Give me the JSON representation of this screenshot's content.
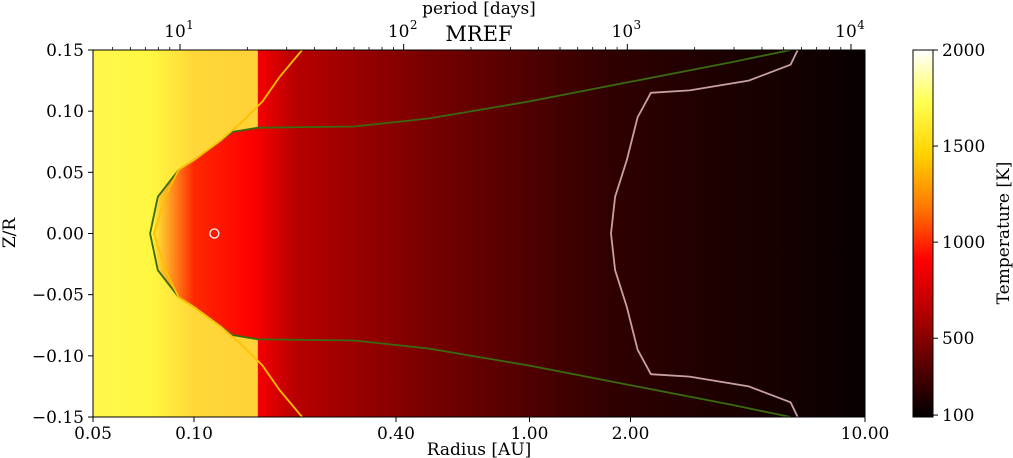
{
  "chart_data": {
    "type": "heatmap",
    "title": "MREF",
    "xlabel": "Radius [AU]",
    "ylabel": "Z/R",
    "top_xlabel": "period [days]",
    "colorbar_label": "Temperature [K]",
    "x_scale": "log",
    "xlim": [
      0.05,
      10.0
    ],
    "ylim": [
      -0.15,
      0.15
    ],
    "x_ticks": [
      {
        "value": 0.05,
        "label": "0.05"
      },
      {
        "value": 0.1,
        "label": "0.10"
      },
      {
        "value": 0.4,
        "label": "0.40"
      },
      {
        "value": 1.0,
        "label": "1.00"
      },
      {
        "value": 2.0,
        "label": "2.00"
      },
      {
        "value": 10.0,
        "label": "10.00"
      }
    ],
    "y_ticks": [
      {
        "value": 0.15,
        "label": "0.15"
      },
      {
        "value": 0.1,
        "label": "0.10"
      },
      {
        "value": 0.05,
        "label": "0.05"
      },
      {
        "value": 0.0,
        "label": "0.00"
      },
      {
        "value": -0.05,
        "label": "−0.05"
      },
      {
        "value": -0.1,
        "label": "−0.10"
      },
      {
        "value": -0.15,
        "label": "−0.15"
      }
    ],
    "top_axis_ticks": [
      {
        "value": 10,
        "base": "10",
        "exp": "1"
      },
      {
        "value": 100,
        "base": "10",
        "exp": "2"
      },
      {
        "value": 1000,
        "base": "10",
        "exp": "3"
      },
      {
        "value": 10000,
        "base": "10",
        "exp": "4"
      }
    ],
    "colorbar": {
      "range": [
        90,
        2000
      ],
      "ticks": [
        {
          "value": 2000,
          "label": "2000"
        },
        {
          "value": 1500,
          "label": "1500"
        },
        {
          "value": 1000,
          "label": "1000"
        },
        {
          "value": 500,
          "label": "500"
        },
        {
          "value": 100,
          "label": "100"
        }
      ],
      "colormap": [
        "#000000",
        "#5a0000",
        "#b40000",
        "#ff0000",
        "#ff7800",
        "#ffd200",
        "#ffff50",
        "#ffffff"
      ]
    },
    "marker": {
      "x": 0.115,
      "y": 0.0,
      "shape": "open-circle",
      "color": "#ffffff"
    },
    "temperature_profile": [
      {
        "r": 0.05,
        "t": 1800
      },
      {
        "r": 0.075,
        "t": 1650
      },
      {
        "r": 0.1,
        "t": 1000
      },
      {
        "r": 0.15,
        "t": 900
      },
      {
        "r": 0.2,
        "t": 650
      },
      {
        "r": 0.3,
        "t": 560
      },
      {
        "r": 0.5,
        "t": 450
      },
      {
        "r": 1.0,
        "t": 330
      },
      {
        "r": 1.7,
        "t": 240
      },
      {
        "r": 3.0,
        "t": 190
      },
      {
        "r": 6.0,
        "t": 150
      },
      {
        "r": 10.0,
        "t": 115
      }
    ],
    "contours": [
      {
        "name": "green-boundary",
        "color": "#3a6a10",
        "points": [
          [
            0.074,
            0.0
          ],
          [
            0.078,
            0.03
          ],
          [
            0.09,
            0.052
          ],
          [
            0.1,
            0.06
          ],
          [
            0.115,
            0.072
          ],
          [
            0.13,
            0.083
          ],
          [
            0.155,
            0.0865
          ],
          [
            0.3,
            0.0875
          ],
          [
            0.5,
            0.094
          ],
          [
            1.0,
            0.108
          ],
          [
            2.0,
            0.124
          ],
          [
            4.0,
            0.14
          ],
          [
            6.0,
            0.15
          ]
        ]
      },
      {
        "name": "pale-contour",
        "color": "#c8a0a0",
        "points": [
          [
            1.75,
            0.0
          ],
          [
            1.8,
            0.03
          ],
          [
            1.95,
            0.06
          ],
          [
            2.1,
            0.095
          ],
          [
            2.3,
            0.115
          ],
          [
            3.0,
            0.117
          ],
          [
            4.5,
            0.125
          ],
          [
            6.0,
            0.138
          ],
          [
            6.3,
            0.15
          ]
        ]
      },
      {
        "name": "yellow-contour",
        "color": "#ffc000",
        "points": [
          [
            0.076,
            0.0
          ],
          [
            0.082,
            0.03
          ],
          [
            0.09,
            0.052
          ],
          [
            0.1,
            0.06
          ],
          [
            0.12,
            0.076
          ],
          [
            0.14,
            0.092
          ],
          [
            0.16,
            0.108
          ],
          [
            0.18,
            0.128
          ],
          [
            0.21,
            0.15
          ]
        ]
      }
    ]
  }
}
